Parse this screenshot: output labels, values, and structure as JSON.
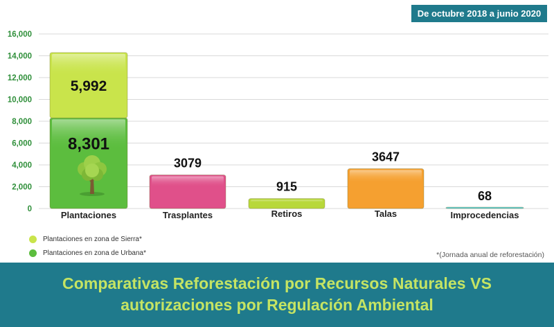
{
  "header": {
    "date_range": "De octubre 2018 a junio 2020"
  },
  "footer": {
    "title_line1": "Comparativas Reforestación por Recursos Naturales VS",
    "title_line2": "autorizaciones por Regulación Ambiental"
  },
  "footnote": "*(Jornada anual de reforestación)",
  "legend": {
    "items": [
      {
        "label": "Plantaciones en zona de Sierra*",
        "color": "#c9e44b"
      },
      {
        "label": "Plantaciones en zona de Urbana*",
        "color": "#5cbd3e"
      }
    ]
  },
  "chart_data": {
    "type": "bar",
    "stacked": true,
    "categories": [
      "Plantaciones",
      "Trasplantes",
      "Retiros",
      "Talas",
      "Improcedencias"
    ],
    "y_ticks": [
      "0",
      "2,000",
      "4,000",
      "6,000",
      "8,000",
      "10,000",
      "12,000",
      "14,000",
      "16,000"
    ],
    "ylim": [
      0,
      16000
    ],
    "grid": true,
    "legend_position": "bottom-left",
    "bars": [
      {
        "category": "Plantaciones",
        "segments": [
          {
            "value": 8301,
            "label": "8,301",
            "color": "#5cbd3e"
          },
          {
            "value": 5992,
            "label": "5,992",
            "color": "#c9e44b"
          }
        ]
      },
      {
        "category": "Trasplantes",
        "segments": [
          {
            "value": 3079,
            "label": "3079",
            "color": "#e0508a"
          }
        ]
      },
      {
        "category": "Retiros",
        "segments": [
          {
            "value": 915,
            "label": "915",
            "color": "#b8d83a"
          }
        ]
      },
      {
        "category": "Talas",
        "segments": [
          {
            "value": 3647,
            "label": "3647",
            "color": "#f5a030"
          }
        ]
      },
      {
        "category": "Improcedencias",
        "segments": [
          {
            "value": 68,
            "label": "68",
            "color": "#5ecfd6"
          }
        ]
      }
    ],
    "icons": [
      "tree-icon"
    ]
  }
}
